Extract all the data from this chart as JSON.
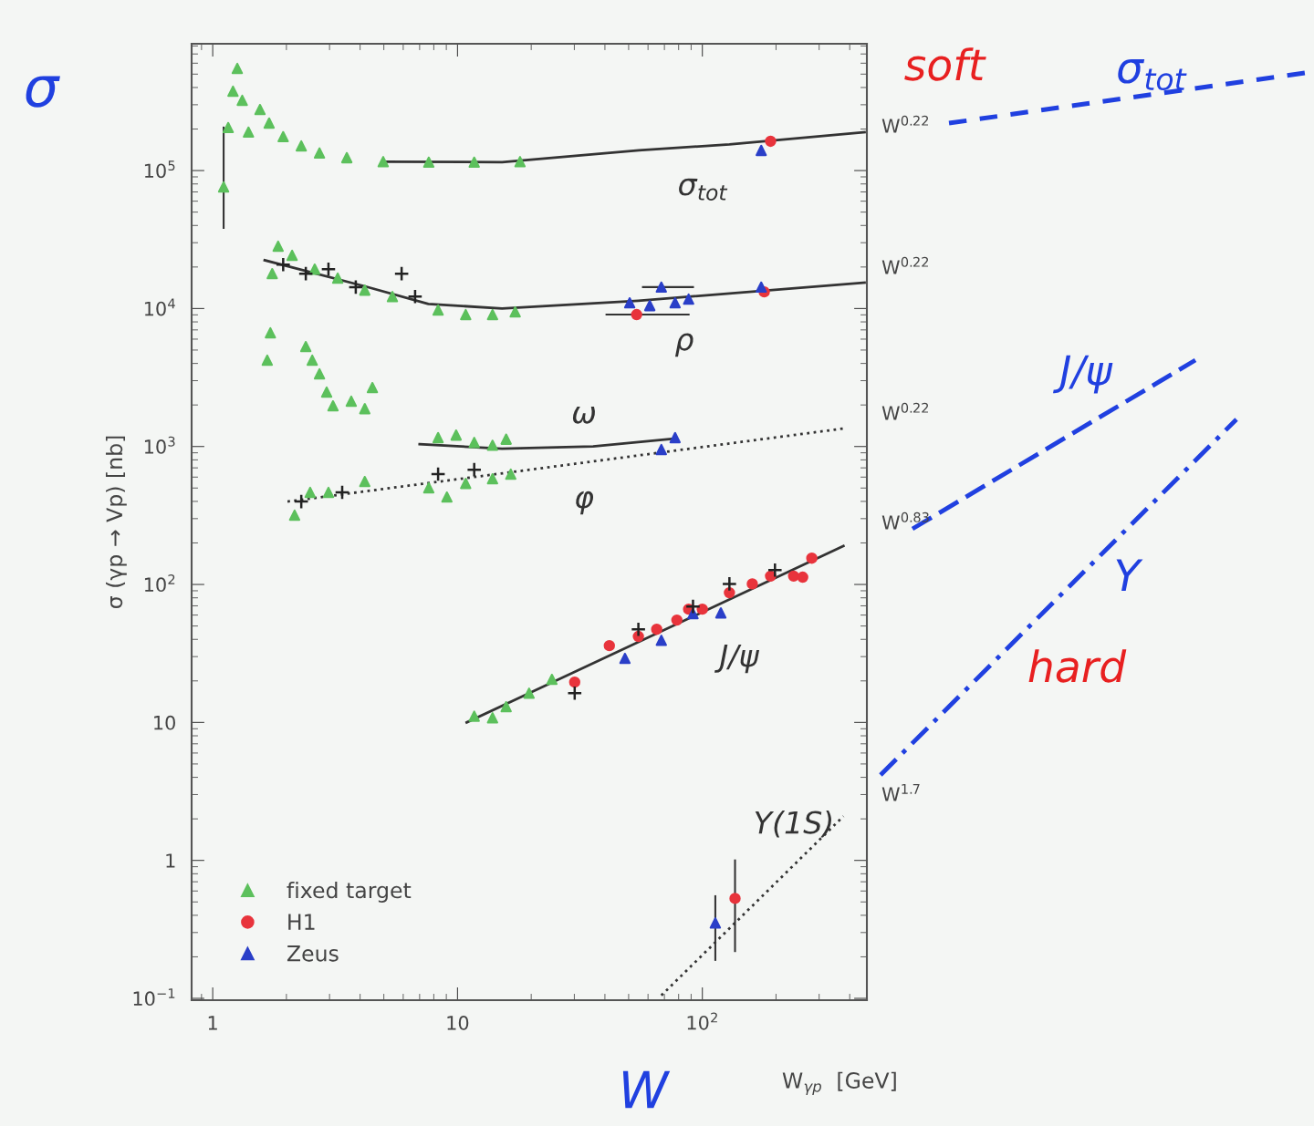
{
  "chart_data": {
    "type": "scatter",
    "log": "xy",
    "grid": false,
    "legend": "bottom left",
    "xlabel": "W$_{γp}$  [GeV]",
    "ylabel": "σ (γp → Vp) [nb]",
    "xlim": [
      0.82,
      470
    ],
    "ylim": [
      0.097,
      830000
    ],
    "xticks": [
      1,
      10,
      {
        "value": 100,
        "label": "10$^{2}$"
      }
    ],
    "yticks": [
      {
        "value": 0.1,
        "label": "10$^{−1}$"
      },
      1,
      10,
      {
        "value": 100,
        "label": "10$^{2}$"
      },
      {
        "value": 1000,
        "label": "10$^{3}$"
      },
      {
        "value": 10000,
        "label": "10$^{4}$"
      },
      {
        "value": 100000,
        "label": "10$^{5}$"
      }
    ],
    "series": [
      {
        "type": "line",
        "color": "#333333",
        "line_style": "solid",
        "x": [
          4.97,
          15.2,
          55,
          129,
          460
        ],
        "values": [
          116000,
          115000,
          140000,
          155000,
          190000
        ]
      },
      {
        "type": "line",
        "color": "#333333",
        "line_style": "solid",
        "x": [
          1.63,
          4.18,
          7.6,
          15.2,
          54.8,
          460
        ],
        "values": [
          22400,
          14500,
          10800,
          10000,
          11400,
          15400
        ]
      },
      {
        "type": "line",
        "color": "#333333",
        "line_style": "solid",
        "x": [
          7.0,
          15.2,
          35.8,
          77.4
        ],
        "values": [
          1040,
          964,
          1000,
          1140
        ]
      },
      {
        "type": "line",
        "color": "#333333",
        "line_style": "dotted",
        "x": [
          2.02,
          377
        ],
        "values": [
          399,
          1350
        ]
      },
      {
        "type": "line",
        "color": "#333333",
        "line_style": "solid",
        "x": [
          10.9,
          377
        ],
        "values": [
          10,
          190
        ]
      },
      {
        "type": "line",
        "color": "#333333",
        "line_style": "dotted",
        "x": [
          68,
          377
        ],
        "values": [
          0.105,
          2.09
        ]
      },
      {
        "marker": "cross",
        "color": "#222222",
        "x": [
          1.94,
          2.4,
          2.97,
          3.84,
          5.91,
          6.71,
          2.3,
          3.38,
          8.33,
          11.7,
          30.1,
          54.8,
          91.6,
          129,
          198
        ],
        "values": [
          20800,
          17900,
          19300,
          14300,
          17900,
          12200,
          399,
          465,
          630,
          679,
          16.3,
          47.3,
          69.3,
          101,
          127
        ]
      },
      {
        "name": "fixed target",
        "marker": "triangle",
        "color": "#5cc05c",
        "x": [
          1.108,
          1.157,
          1.21,
          1.26,
          1.32,
          1.4,
          1.56,
          1.7,
          1.94,
          2.3,
          2.73,
          3.53,
          4.97,
          7.63,
          11.7,
          18.0,
          1.67,
          1.72,
          1.75,
          1.85,
          2.11,
          2.61,
          3.24,
          4.18,
          5.42,
          8.33,
          10.8,
          13.9,
          17.2,
          2.4,
          2.55,
          2.73,
          2.92,
          3.1,
          3.68,
          4.18,
          4.49,
          8.33,
          9.87,
          11.7,
          13.9,
          15.8,
          2.16,
          2.5,
          2.97,
          4.18,
          7.63,
          9.05,
          10.8,
          13.9,
          16.5,
          11.7,
          13.9,
          15.8,
          19.6,
          24.3
        ],
        "values": [
          76000,
          205000,
          376000,
          550000,
          323000,
          190000,
          277000,
          221000,
          176000,
          151000,
          134000,
          124000,
          116000,
          115000,
          115000,
          116000,
          4220,
          6670,
          17900,
          28300,
          24300,
          19300,
          16600,
          13600,
          12200,
          9750,
          9040,
          9040,
          9460,
          5300,
          4220,
          3360,
          2480,
          1970,
          2130,
          1880,
          2670,
          1160,
          1210,
          1070,
          1020,
          1130,
          318,
          465,
          465,
          557,
          501,
          430,
          540,
          583,
          630,
          11.1,
          10.8,
          13.0,
          16.3,
          20.5
        ],
        "errors": [
          [
            38400,
            205000
          ],
          null,
          null,
          null,
          null,
          null,
          null,
          null,
          null,
          null,
          null,
          null,
          null,
          null,
          null,
          null,
          null,
          null,
          null,
          null,
          null,
          null,
          null,
          null,
          null,
          null,
          null,
          null,
          null,
          null,
          null,
          null,
          null,
          null,
          null,
          null,
          null,
          null,
          null,
          null,
          null,
          null,
          null,
          null,
          null,
          null,
          null,
          null,
          null,
          null,
          null,
          null,
          null,
          null,
          null,
          null
        ]
      },
      {
        "name": "H1",
        "marker": "circle",
        "color": "#e8343c",
        "x": [
          190,
          53.9,
          179,
          30.1,
          41.7,
          54.8,
          65.1,
          78.7,
          87.9,
          100,
          129,
          160,
          190,
          236,
          257,
          280,
          136
        ],
        "values": [
          163000,
          9040,
          13200,
          19.6,
          36.0,
          42.0,
          47.3,
          55.2,
          66.2,
          66.2,
          87.1,
          101,
          115,
          115,
          113,
          155,
          0.53
        ],
        "errors": [
          null,
          null,
          null,
          null,
          null,
          null,
          null,
          null,
          null,
          null,
          null,
          null,
          null,
          null,
          null,
          null,
          [
            0.22,
            1.0
          ]
        ],
        "xerrors": [
          null,
          [
            40.6,
            87.9
          ],
          null,
          null,
          null,
          null,
          null,
          null,
          null,
          null,
          null,
          null,
          null,
          null,
          null,
          null,
          null
        ]
      },
      {
        "name": "Zeus",
        "marker": "triangle",
        "color": "#2a3fc8",
        "x": [
          174,
          50.5,
          61,
          68,
          77.4,
          87.9,
          174,
          77.4,
          68,
          48.3,
          68,
          91.6,
          119,
          113
        ],
        "values": [
          140000,
          11000,
          10500,
          14300,
          11000,
          11700,
          14300,
          1160,
          950,
          29.1,
          39.4,
          61.4,
          62.2,
          0.352
        ],
        "errors": [
          null,
          null,
          null,
          null,
          null,
          null,
          null,
          null,
          null,
          null,
          null,
          null,
          null,
          [
            0.19,
            0.55
          ]
        ],
        "xerrors": [
          null,
          null,
          null,
          [
            57.2,
            91.6
          ],
          null,
          null,
          null,
          null,
          null,
          null,
          null,
          null,
          null,
          null
        ]
      }
    ],
    "annotations": [
      "σ$_{tot}$",
      "ρ",
      "ω",
      "φ",
      "J/ψ",
      "Υ(1S)",
      "W$^{0.22}$",
      "W$^{0.22}$",
      "W$^{0.22}$",
      "W$^{0.83}$",
      "W$^{1.7}$",
      "σ",
      "soft",
      "σ$_{tot}$",
      "J/ψ",
      "Υ",
      "hard",
      "W"
    ]
  }
}
